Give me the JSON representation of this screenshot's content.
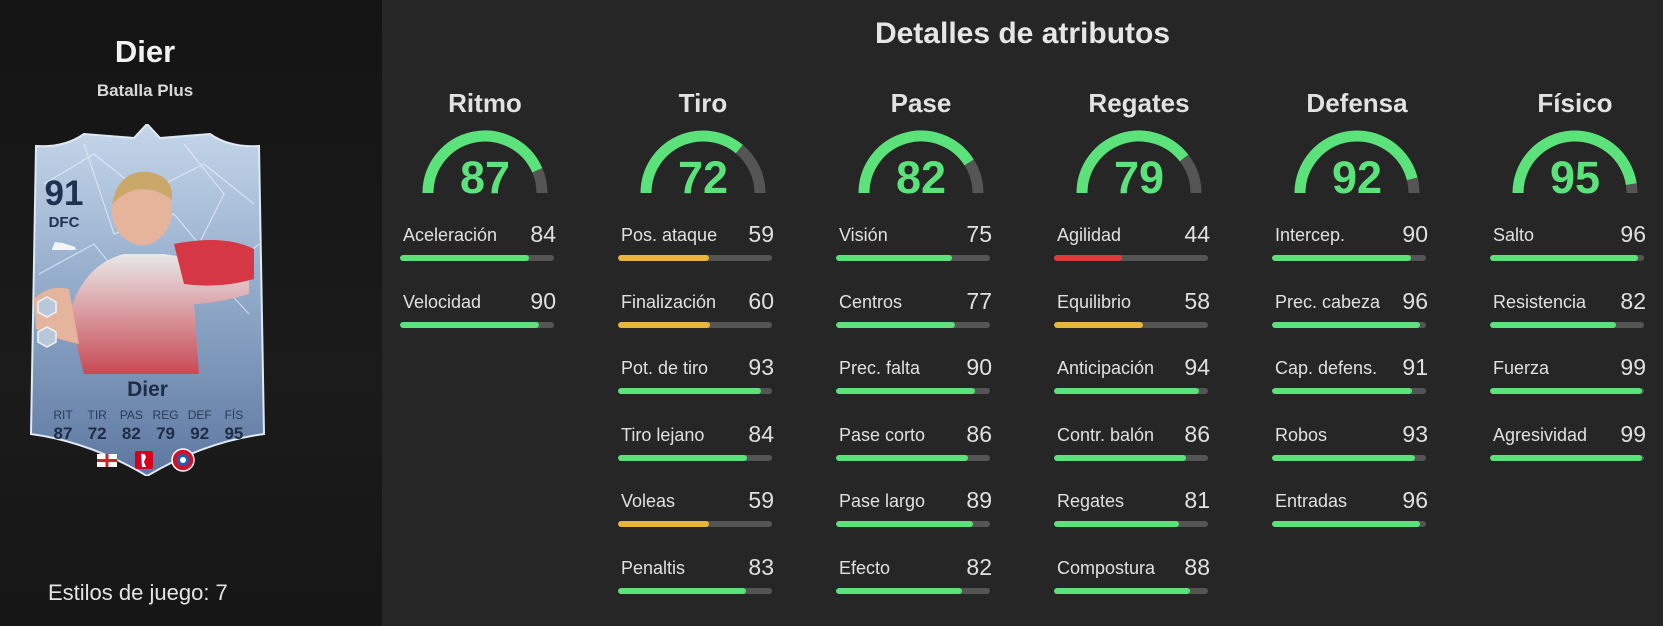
{
  "player": {
    "name": "Dier",
    "version": "Batalla Plus",
    "rating": "91",
    "position": "DFC",
    "card_name": "Dier",
    "card_stats": [
      {
        "label": "RIT",
        "value": "87"
      },
      {
        "label": "TIR",
        "value": "72"
      },
      {
        "label": "PAS",
        "value": "82"
      },
      {
        "label": "REG",
        "value": "79"
      },
      {
        "label": "DEF",
        "value": "92"
      },
      {
        "label": "FÍS",
        "value": "95"
      }
    ],
    "playstyles_label": "Estilos de juego: 7"
  },
  "page_title": "Detalles de atributos",
  "colors": {
    "green": "#5be27a",
    "yellow": "#e8b63a",
    "red": "#e03a3a",
    "track": "#555555"
  },
  "categories": [
    {
      "name": "Ritmo",
      "value": 87,
      "stats": [
        {
          "name": "Aceleración",
          "value": 84
        },
        {
          "name": "Velocidad",
          "value": 90
        }
      ]
    },
    {
      "name": "Tiro",
      "value": 72,
      "stats": [
        {
          "name": "Pos. ataque",
          "value": 59
        },
        {
          "name": "Finalización",
          "value": 60
        },
        {
          "name": "Pot. de tiro",
          "value": 93
        },
        {
          "name": "Tiro lejano",
          "value": 84
        },
        {
          "name": "Voleas",
          "value": 59
        },
        {
          "name": "Penaltis",
          "value": 83
        }
      ]
    },
    {
      "name": "Pase",
      "value": 82,
      "stats": [
        {
          "name": "Visión",
          "value": 75
        },
        {
          "name": "Centros",
          "value": 77
        },
        {
          "name": "Prec. falta",
          "value": 90
        },
        {
          "name": "Pase corto",
          "value": 86
        },
        {
          "name": "Pase largo",
          "value": 89
        },
        {
          "name": "Efecto",
          "value": 82
        }
      ]
    },
    {
      "name": "Regates",
      "value": 79,
      "stats": [
        {
          "name": "Agilidad",
          "value": 44
        },
        {
          "name": "Equilibrio",
          "value": 58
        },
        {
          "name": "Anticipación",
          "value": 94
        },
        {
          "name": "Contr. balón",
          "value": 86
        },
        {
          "name": "Regates",
          "value": 81
        },
        {
          "name": "Compostura",
          "value": 88
        }
      ]
    },
    {
      "name": "Defensa",
      "value": 92,
      "stats": [
        {
          "name": "Intercep.",
          "value": 90
        },
        {
          "name": "Prec. cabeza",
          "value": 96
        },
        {
          "name": "Cap. defens.",
          "value": 91
        },
        {
          "name": "Robos",
          "value": 93
        },
        {
          "name": "Entradas",
          "value": 96
        }
      ]
    },
    {
      "name": "Físico",
      "value": 95,
      "stats": [
        {
          "name": "Salto",
          "value": 96
        },
        {
          "name": "Resistencia",
          "value": 82
        },
        {
          "name": "Fuerza",
          "value": 99
        },
        {
          "name": "Agresividad",
          "value": 99
        }
      ]
    }
  ]
}
